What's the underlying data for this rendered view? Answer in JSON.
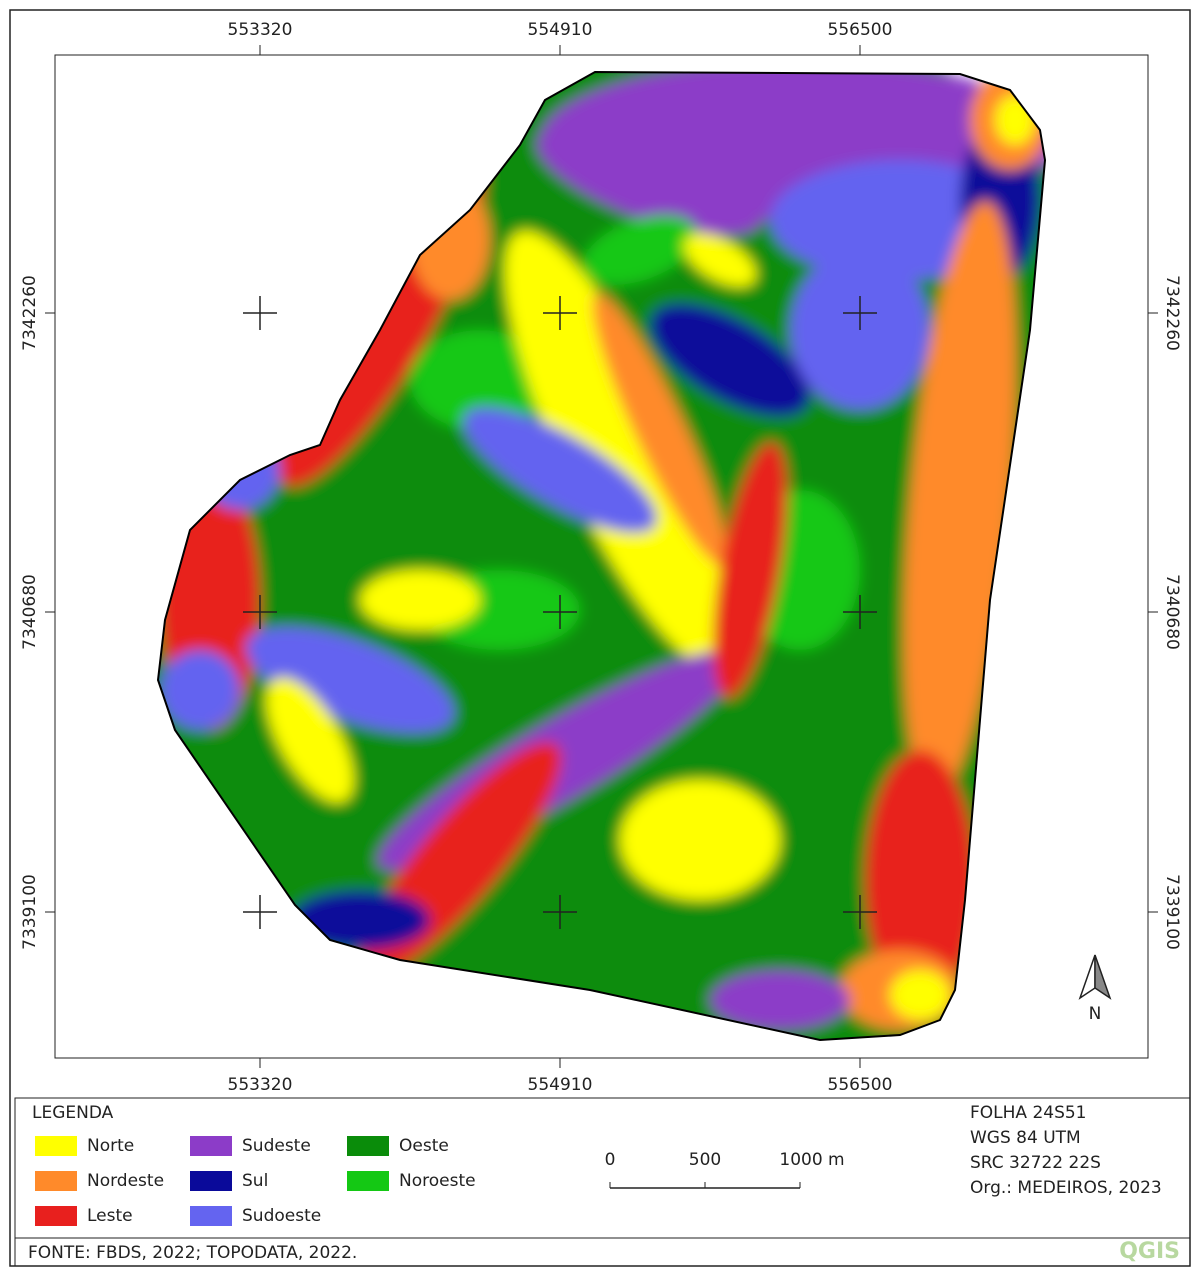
{
  "map": {
    "x_labels": [
      "553320",
      "554910",
      "556500"
    ],
    "y_labels": [
      "7342260",
      "7340680",
      "7339100"
    ],
    "north": "N"
  },
  "legend": {
    "title": "LEGENDA",
    "items": [
      {
        "label": "Norte",
        "color": "#ffff00"
      },
      {
        "label": "Nordeste",
        "color": "#ff8a2a"
      },
      {
        "label": "Leste",
        "color": "#e8201e"
      },
      {
        "label": "Sudeste",
        "color": "#8c3cc8"
      },
      {
        "label": "Sul",
        "color": "#0a0a9a"
      },
      {
        "label": "Sudoeste",
        "color": "#6464f0"
      },
      {
        "label": "Oeste",
        "color": "#0a8c0a"
      },
      {
        "label": "Noroeste",
        "color": "#14c814"
      }
    ]
  },
  "scale_bar": {
    "labels": [
      "0",
      "500",
      "1000 m"
    ]
  },
  "info": [
    "FOLHA 24S51",
    "WGS 84 UTM",
    "SRC 32722 22S",
    "Org.: MEDEIROS, 2023"
  ],
  "footer": "FONTE: FBDS, 2022; TOPODATA, 2022.",
  "logo": "QGIS"
}
